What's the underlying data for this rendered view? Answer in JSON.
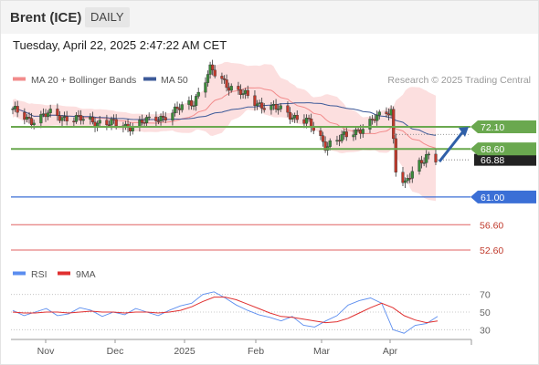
{
  "header": {
    "title": "Brent (ICE)",
    "period": "DAILY",
    "timestamp": "Tuesday, April 22, 2025 2:47:22 AM CET"
  },
  "price_legend": [
    {
      "label": "MA 20 + Bollinger Bands",
      "color": "#f28b8b"
    },
    {
      "label": "MA 50",
      "color": "#3d5a99"
    }
  ],
  "rsi_legend": [
    {
      "label": "RSI",
      "color": "#5b8def"
    },
    {
      "label": "9MA",
      "color": "#e03030"
    }
  ],
  "credit": "Research © 2025 Trading Central",
  "colors": {
    "up_candle": "#3a8a3a",
    "down_candle": "#c0392b",
    "resistance_green": "#6aa84f",
    "pivot_blue": "#3b6fd6",
    "support_red": "#e06060",
    "bollinger_fill": "#fcd9d9",
    "ma20": "#f28b8b",
    "ma50": "#3d5a99",
    "current_price_box": "#222222",
    "arrow": "#2f5fa8"
  },
  "chart_data": [
    {
      "type": "candlestick",
      "instrument": "Brent (ICE)",
      "timeframe": "daily",
      "x_tick_labels": [
        "Nov",
        "Dec",
        "2025",
        "Feb",
        "Mar",
        "Apr"
      ],
      "approx_close_path": [
        {
          "x": "2024-10-23",
          "y": 74.6
        },
        {
          "x": "2024-10-31",
          "y": 73.2
        },
        {
          "x": "2024-11-08",
          "y": 74.1
        },
        {
          "x": "2024-11-19",
          "y": 73.3
        },
        {
          "x": "2024-11-29",
          "y": 72.9
        },
        {
          "x": "2024-12-10",
          "y": 72.2
        },
        {
          "x": "2024-12-20",
          "y": 73.0
        },
        {
          "x": "2024-12-31",
          "y": 74.5
        },
        {
          "x": "2025-01-08",
          "y": 76.2
        },
        {
          "x": "2025-01-15",
          "y": 81.0
        },
        {
          "x": "2025-01-24",
          "y": 78.4
        },
        {
          "x": "2025-02-03",
          "y": 76.0
        },
        {
          "x": "2025-02-14",
          "y": 74.7
        },
        {
          "x": "2025-02-25",
          "y": 73.0
        },
        {
          "x": "2025-03-05",
          "y": 69.3
        },
        {
          "x": "2025-03-14",
          "y": 70.6
        },
        {
          "x": "2025-03-25",
          "y": 73.0
        },
        {
          "x": "2025-04-02",
          "y": 74.9
        },
        {
          "x": "2025-04-04",
          "y": 65.6
        },
        {
          "x": "2025-04-08",
          "y": 62.8
        },
        {
          "x": "2025-04-11",
          "y": 64.8
        },
        {
          "x": "2025-04-17",
          "y": 67.8
        },
        {
          "x": "2025-04-21",
          "y": 66.9
        }
      ],
      "current_price_label": "66.88",
      "levels": [
        {
          "label": "72.10",
          "value": 72.1,
          "kind": "resistance"
        },
        {
          "label": "68.60",
          "value": 68.6,
          "kind": "resistance"
        },
        {
          "label": "61.00",
          "value": 61.0,
          "kind": "pivot"
        },
        {
          "label": "56.60",
          "value": 56.6,
          "kind": "support"
        },
        {
          "label": "52.60",
          "value": 52.6,
          "kind": "support"
        }
      ],
      "forecast_arrow": {
        "direction": "up",
        "target": 72.1
      },
      "indicators": [
        "MA 20 + Bollinger Bands",
        "MA 50"
      ]
    },
    {
      "type": "line",
      "name": "RSI panel",
      "y_tick_labels": [
        "70",
        "50",
        "30"
      ],
      "ylim": [
        20,
        80
      ],
      "series": [
        {
          "name": "RSI",
          "values": [
            52,
            46,
            50,
            54,
            46,
            48,
            55,
            52,
            45,
            50,
            47,
            54,
            50,
            46,
            52,
            57,
            60,
            70,
            73,
            66,
            58,
            52,
            47,
            44,
            40,
            45,
            35,
            33,
            40,
            46,
            58,
            63,
            66,
            60,
            30,
            26,
            35,
            37,
            45
          ]
        },
        {
          "name": "9MA",
          "values": [
            50,
            49,
            49,
            50,
            50,
            49,
            50,
            51,
            50,
            50,
            49,
            50,
            50,
            49,
            50,
            52,
            56,
            62,
            67,
            67,
            64,
            59,
            54,
            49,
            45,
            44,
            42,
            40,
            38,
            39,
            43,
            49,
            55,
            60,
            55,
            46,
            41,
            38,
            40
          ]
        }
      ]
    }
  ]
}
